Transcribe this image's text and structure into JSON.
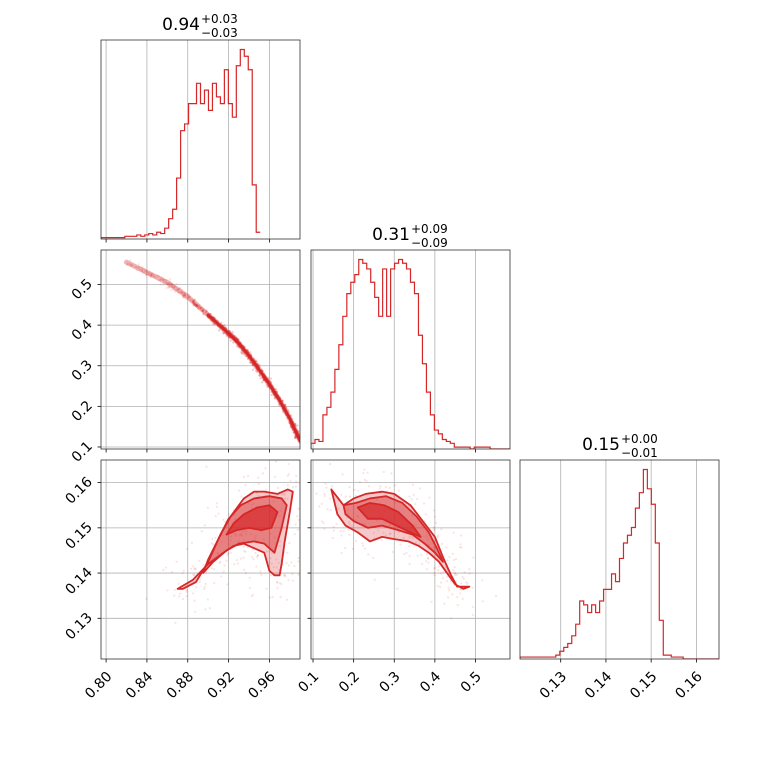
{
  "colors": {
    "series": "#d62728",
    "grid": "#b0b0b0",
    "frame": "#333333"
  },
  "titles": [
    {
      "main": "0.94",
      "sup": "+0.03",
      "sub": "−0.03"
    },
    {
      "main": "0.31",
      "sup": "+0.09",
      "sub": "−0.09"
    },
    {
      "main": "0.15",
      "sup": "+0.00",
      "sub": "−0.01"
    }
  ],
  "chart_data": {
    "type": "corner",
    "grid": true,
    "params": [
      {
        "range": [
          0.795,
          0.99
        ],
        "ticks": [
          0.8,
          0.84,
          0.88,
          0.92,
          0.96
        ],
        "tick_labels": [
          "0.80",
          "0.84",
          "0.88",
          "0.92",
          "0.96"
        ]
      },
      {
        "range": [
          0.095,
          0.585
        ],
        "ticks": [
          0.1,
          0.2,
          0.3,
          0.4,
          0.5
        ],
        "tick_labels": [
          "0.1",
          "0.2",
          "0.3",
          "0.4",
          "0.5"
        ]
      },
      {
        "range": [
          0.121,
          0.165
        ],
        "ticks": [
          0.13,
          0.14,
          0.15,
          0.16
        ],
        "tick_labels": [
          "0.13",
          "0.14",
          "0.15",
          "0.16"
        ]
      }
    ],
    "histograms": [
      {
        "param": 0,
        "bin_start": 0.795,
        "bin_width": 0.0039,
        "counts": [
          1,
          1,
          1,
          1,
          1,
          1,
          2,
          2,
          2,
          3,
          2,
          3,
          4,
          3,
          5,
          4,
          8,
          15,
          22,
          45,
          80,
          85,
          100,
          100,
          115,
          100,
          110,
          95,
          115,
          105,
          100,
          125,
          100,
          90,
          128,
          140,
          135,
          125,
          40,
          5
        ]
      },
      {
        "param": 1,
        "bin_start": 0.095,
        "bin_width": 0.0098,
        "counts": [
          3,
          5,
          4,
          18,
          22,
          30,
          42,
          55,
          70,
          82,
          88,
          92,
          100,
          98,
          95,
          88,
          80,
          70,
          95,
          70,
          95,
          98,
          100,
          98,
          95,
          88,
          82,
          60,
          45,
          30,
          18,
          10,
          8,
          5,
          4,
          3,
          1,
          1,
          1,
          1,
          0,
          1,
          1,
          1,
          1,
          0,
          0,
          0,
          0,
          0
        ]
      },
      {
        "param": 2,
        "bin_start": 0.121,
        "bin_width": 0.00088,
        "counts": [
          1,
          1,
          1,
          1,
          1,
          1,
          1,
          1,
          1,
          2,
          4,
          6,
          8,
          12,
          18,
          30,
          28,
          24,
          28,
          24,
          30,
          36,
          36,
          44,
          40,
          52,
          60,
          64,
          68,
          78,
          86,
          98,
          88,
          80,
          60,
          20,
          2,
          2,
          1,
          1,
          1,
          0,
          0,
          0,
          0,
          0,
          0,
          0,
          0,
          0
        ]
      }
    ],
    "pairs": [
      {
        "x_param": 0,
        "y_param": 1,
        "ridge": [
          [
            0.82,
            0.555
          ],
          [
            0.86,
            0.505
          ],
          [
            0.88,
            0.47
          ],
          [
            0.9,
            0.425
          ],
          [
            0.92,
            0.38
          ],
          [
            0.93,
            0.355
          ],
          [
            0.94,
            0.325
          ],
          [
            0.95,
            0.29
          ],
          [
            0.96,
            0.255
          ],
          [
            0.97,
            0.215
          ],
          [
            0.98,
            0.17
          ],
          [
            0.99,
            0.115
          ]
        ]
      },
      {
        "x_param": 0,
        "y_param": 2,
        "levels": [
          {
            "level": 1,
            "polygon": [
              [
                0.87,
                0.1365
              ],
              [
                0.885,
                0.1385
              ],
              [
                0.9,
                0.142
              ],
              [
                0.915,
                0.1445
              ],
              [
                0.925,
                0.146
              ],
              [
                0.935,
                0.1465
              ],
              [
                0.945,
                0.1455
              ],
              [
                0.955,
                0.1445
              ],
              [
                0.96,
                0.1405
              ],
              [
                0.965,
                0.1395
              ],
              [
                0.97,
                0.1395
              ],
              [
                0.972,
                0.142
              ],
              [
                0.975,
                0.147
              ],
              [
                0.98,
                0.1535
              ],
              [
                0.983,
                0.158
              ],
              [
                0.978,
                0.1585
              ],
              [
                0.968,
                0.1575
              ],
              [
                0.955,
                0.158
              ],
              [
                0.945,
                0.158
              ],
              [
                0.935,
                0.1565
              ],
              [
                0.922,
                0.1525
              ],
              [
                0.912,
                0.1485
              ],
              [
                0.9,
                0.1425
              ],
              [
                0.888,
                0.138
              ],
              [
                0.875,
                0.1365
              ]
            ]
          },
          {
            "level": 2,
            "polygon": [
              [
                0.895,
                0.14
              ],
              [
                0.905,
                0.1425
              ],
              [
                0.918,
                0.145
              ],
              [
                0.93,
                0.1465
              ],
              [
                0.945,
                0.147
              ],
              [
                0.955,
                0.1465
              ],
              [
                0.965,
                0.1445
              ],
              [
                0.972,
                0.15
              ],
              [
                0.977,
                0.155
              ],
              [
                0.972,
                0.1565
              ],
              [
                0.96,
                0.157
              ],
              [
                0.945,
                0.1565
              ],
              [
                0.932,
                0.155
              ],
              [
                0.92,
                0.152
              ],
              [
                0.91,
                0.1475
              ],
              [
                0.9,
                0.143
              ]
            ]
          },
          {
            "level": 3,
            "polygon": [
              [
                0.918,
                0.1485
              ],
              [
                0.928,
                0.1495
              ],
              [
                0.94,
                0.15
              ],
              [
                0.952,
                0.1495
              ],
              [
                0.962,
                0.15
              ],
              [
                0.968,
                0.1535
              ],
              [
                0.96,
                0.155
              ],
              [
                0.948,
                0.1545
              ],
              [
                0.935,
                0.153
              ],
              [
                0.925,
                0.151
              ]
            ]
          }
        ]
      },
      {
        "x_param": 1,
        "y_param": 2,
        "levels": [
          {
            "level": 1,
            "polygon": [
              [
                0.145,
                0.1585
              ],
              [
                0.175,
                0.155
              ],
              [
                0.2,
                0.1565
              ],
              [
                0.23,
                0.1575
              ],
              [
                0.27,
                0.158
              ],
              [
                0.3,
                0.1575
              ],
              [
                0.34,
                0.155
              ],
              [
                0.37,
                0.1515
              ],
              [
                0.4,
                0.148
              ],
              [
                0.42,
                0.1435
              ],
              [
                0.44,
                0.1395
              ],
              [
                0.455,
                0.137
              ],
              [
                0.485,
                0.137
              ],
              [
                0.47,
                0.1365
              ],
              [
                0.45,
                0.1375
              ],
              [
                0.43,
                0.14
              ],
              [
                0.41,
                0.1425
              ],
              [
                0.385,
                0.1445
              ],
              [
                0.36,
                0.146
              ],
              [
                0.335,
                0.147
              ],
              [
                0.3,
                0.1475
              ],
              [
                0.27,
                0.148
              ],
              [
                0.24,
                0.147
              ],
              [
                0.21,
                0.149
              ],
              [
                0.18,
                0.1505
              ],
              [
                0.16,
                0.153
              ]
            ]
          },
          {
            "level": 2,
            "polygon": [
              [
                0.175,
                0.155
              ],
              [
                0.205,
                0.1555
              ],
              [
                0.24,
                0.1565
              ],
              [
                0.28,
                0.157
              ],
              [
                0.32,
                0.1555
              ],
              [
                0.355,
                0.1525
              ],
              [
                0.385,
                0.149
              ],
              [
                0.405,
                0.1455
              ],
              [
                0.42,
                0.1425
              ],
              [
                0.4,
                0.1445
              ],
              [
                0.375,
                0.1465
              ],
              [
                0.345,
                0.1485
              ],
              [
                0.31,
                0.1495
              ],
              [
                0.27,
                0.1505
              ],
              [
                0.235,
                0.15
              ],
              [
                0.2,
                0.1515
              ],
              [
                0.18,
                0.153
              ]
            ]
          },
          {
            "level": 3,
            "polygon": [
              [
                0.21,
                0.1545
              ],
              [
                0.24,
                0.1555
              ],
              [
                0.275,
                0.155
              ],
              [
                0.31,
                0.1535
              ],
              [
                0.345,
                0.1505
              ],
              [
                0.365,
                0.148
              ],
              [
                0.34,
                0.149
              ],
              [
                0.305,
                0.1505
              ],
              [
                0.27,
                0.152
              ],
              [
                0.235,
                0.152
              ]
            ]
          }
        ]
      }
    ]
  }
}
